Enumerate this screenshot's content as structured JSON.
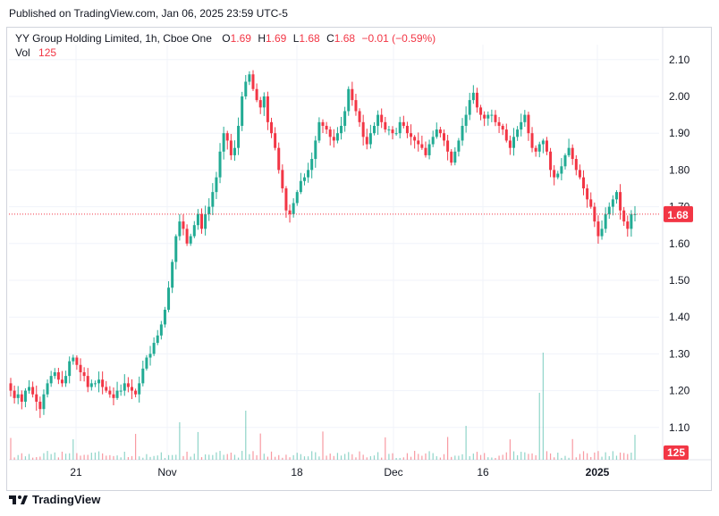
{
  "header": {
    "published": "Published on TradingView.com, Jan 06, 2025 23:59 UTC-5"
  },
  "legend": {
    "symbol": "YY Group Holding Limited, 1h, Cboe One",
    "o_label": "O",
    "o_value": "1.69",
    "h_label": "H",
    "h_value": "1.69",
    "l_label": "L",
    "l_value": "1.68",
    "c_label": "C",
    "c_value": "1.68",
    "change": "−0.01 (−0.59%)",
    "vol_label": "Vol",
    "vol_value": "125"
  },
  "footer": {
    "brand": "TradingView"
  },
  "colors": {
    "up": "#22ab94",
    "down": "#f23645",
    "grid": "#f0f3fa",
    "last_price_line": "#f23645"
  },
  "chart_data": {
    "type": "candlestick",
    "title": "YY Group Holding Limited, 1h, Cboe One",
    "price_axis": {
      "ticks": [
        "2.10",
        "2.00",
        "1.90",
        "1.80",
        "1.70",
        "1.60",
        "1.50",
        "1.40",
        "1.30",
        "1.20",
        "1.10"
      ],
      "range": [
        1.05,
        2.14
      ]
    },
    "time_axis": {
      "ticks": [
        "21",
        "Nov",
        "18",
        "Dec",
        "16",
        "2025"
      ]
    },
    "last_price": {
      "value": 1.68,
      "label": "1.68"
    },
    "last_volume": {
      "value": 125,
      "label": "125"
    },
    "candles_close": [
      1.2,
      1.18,
      1.19,
      1.17,
      1.2,
      1.21,
      1.19,
      1.17,
      1.15,
      1.19,
      1.22,
      1.24,
      1.25,
      1.23,
      1.22,
      1.24,
      1.28,
      1.29,
      1.27,
      1.25,
      1.24,
      1.21,
      1.22,
      1.22,
      1.23,
      1.21,
      1.2,
      1.19,
      1.18,
      1.2,
      1.2,
      1.22,
      1.21,
      1.2,
      1.19,
      1.22,
      1.26,
      1.29,
      1.3,
      1.33,
      1.35,
      1.38,
      1.42,
      1.48,
      1.55,
      1.62,
      1.66,
      1.64,
      1.6,
      1.62,
      1.65,
      1.68,
      1.64,
      1.68,
      1.7,
      1.74,
      1.78,
      1.85,
      1.9,
      1.88,
      1.84,
      1.86,
      1.92,
      2.0,
      2.04,
      2.06,
      2.02,
      1.99,
      1.97,
      2.0,
      1.93,
      1.9,
      1.86,
      1.8,
      1.75,
      1.69,
      1.68,
      1.71,
      1.74,
      1.77,
      1.78,
      1.8,
      1.83,
      1.88,
      1.93,
      1.92,
      1.91,
      1.89,
      1.88,
      1.9,
      1.92,
      1.96,
      2.02,
      1.99,
      1.96,
      1.93,
      1.89,
      1.87,
      1.9,
      1.92,
      1.95,
      1.93,
      1.91,
      1.91,
      1.9,
      1.9,
      1.93,
      1.92,
      1.9,
      1.89,
      1.88,
      1.87,
      1.86,
      1.84,
      1.87,
      1.89,
      1.91,
      1.9,
      1.88,
      1.85,
      1.82,
      1.85,
      1.88,
      1.92,
      1.95,
      1.99,
      2.01,
      1.97,
      1.95,
      1.94,
      1.95,
      1.95,
      1.93,
      1.92,
      1.91,
      1.88,
      1.86,
      1.89,
      1.91,
      1.93,
      1.95,
      1.9,
      1.86,
      1.85,
      1.87,
      1.88,
      1.85,
      1.8,
      1.78,
      1.79,
      1.81,
      1.84,
      1.86,
      1.83,
      1.8,
      1.78,
      1.75,
      1.72,
      1.7,
      1.66,
      1.62,
      1.64,
      1.68,
      1.7,
      1.72,
      1.74,
      1.69,
      1.66,
      1.64,
      1.68,
      1.68
    ],
    "volume_note": "Volume histogram shown at bottom of pane"
  }
}
